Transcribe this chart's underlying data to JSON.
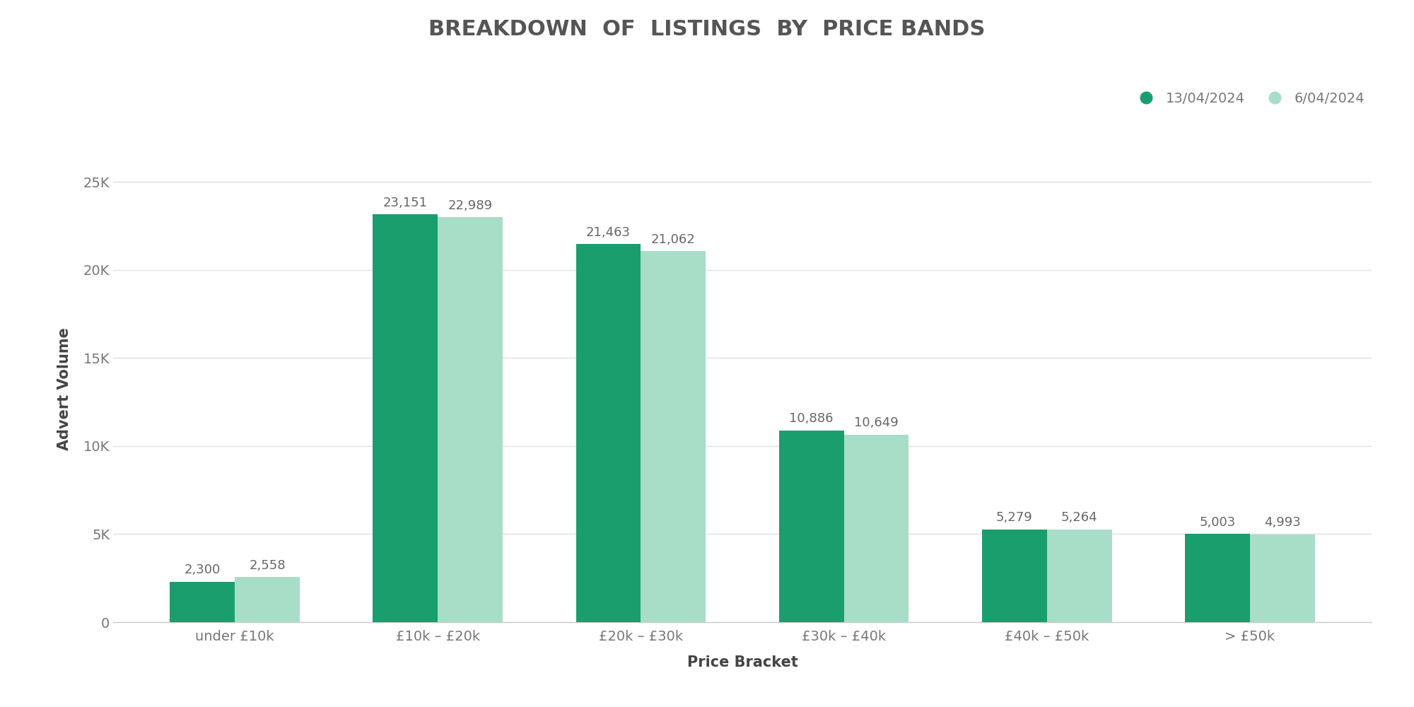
{
  "title": "BREAKDOWN  OF  LISTINGS  BY  PRICE BANDS",
  "xlabel": "Price Bracket",
  "ylabel": "Advert Volume",
  "categories": [
    "under £10k",
    "£10k – £20k",
    "£20k – £30k",
    "£30k – £40k",
    "£40k – £50k",
    "> £50k"
  ],
  "series1_label": "13/04/2024",
  "series2_label": "6/04/2024",
  "series1_values": [
    2300,
    23151,
    21463,
    10886,
    5279,
    5003
  ],
  "series2_values": [
    2558,
    22989,
    21062,
    10649,
    5264,
    4993
  ],
  "series1_color": "#1a9e6e",
  "series2_color": "#a8ddc8",
  "bar_width": 0.32,
  "ylim": [
    0,
    26500
  ],
  "yticks": [
    0,
    5000,
    10000,
    15000,
    20000,
    25000
  ],
  "ytick_labels": [
    "0",
    "5K",
    "10K",
    "15K",
    "20K",
    "25K"
  ],
  "background_color": "#ffffff",
  "grid_color": "#e0e0e0",
  "title_fontsize": 22,
  "label_fontsize": 15,
  "tick_fontsize": 14,
  "annotation_fontsize": 13,
  "legend_fontsize": 14,
  "title_color": "#555555",
  "axis_label_color": "#444444",
  "tick_color": "#777777",
  "annotation_color": "#666666"
}
